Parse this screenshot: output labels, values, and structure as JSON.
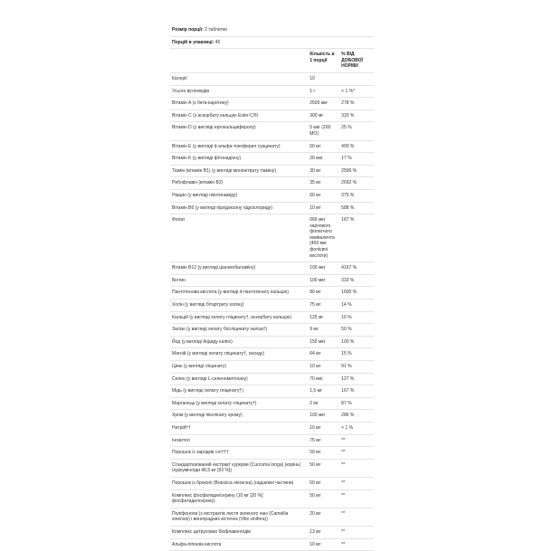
{
  "serving_size": {
    "label": "Розмір порції",
    "value": "2 таблетки"
  },
  "servings_per_container": {
    "label": "Порцій в упаковці",
    "value": "45"
  },
  "header": {
    "amount": "Кількість в 1 порції",
    "dv": "% ВІД ДОБОВОЇ НОРМИ"
  },
  "rows": [
    {
      "name": "Калорії",
      "amount": "10",
      "dv": ""
    },
    {
      "name": "Усього вуглеводів",
      "amount": "1 г",
      "dv": "< 1 %*"
    },
    {
      "name": "Вітамін A (з бета-каротину)",
      "amount": "2500 мкг",
      "dv": "278 %"
    },
    {
      "name": "Вітамін C (з аскорбату кальцію Ester-C®)",
      "amount": "300 мг",
      "dv": "333 %"
    },
    {
      "name": "Вітамін D (у вигляді ергокальциферолу)",
      "amount": "5 мкг (200 МО)",
      "dv": "25 %"
    },
    {
      "name": "Вітамін E (у вигляді d-альфа-токоферил сукцинату)",
      "amount": "60 мг",
      "dv": "400 %"
    },
    {
      "name": "Вітамін K (у вигляді фітонадіону)",
      "amount": "20 мкг",
      "dv": "17 %"
    },
    {
      "name": "Тіамін (вітамін B1) (у вигляді мононітрату тіаміну)",
      "amount": "30 мг",
      "dv": "2500 %"
    },
    {
      "name": "Рибофлавін (вітамін B2)",
      "amount": "35 мг",
      "dv": "2692 %"
    },
    {
      "name": "Ніацин (у вигляді нікотинаміду)",
      "amount": "60 мг",
      "dv": "375 %"
    },
    {
      "name": "Вітамін B6 (у вигляді піридоксину гідрохлориду)",
      "amount": "10 мг",
      "dv": "588 %"
    },
    {
      "name": "Фолат",
      "amount": "666 мкг харчового фолатного еквівалента (400 мкг фолієвої кислоти)",
      "dv": "167 %"
    },
    {
      "name": "Вітамін B12 (у вигляді ціанокобаламіну)",
      "amount": "100 мкг",
      "dv": "4167 %"
    },
    {
      "name": "Біотин",
      "amount": "100 мкг",
      "dv": "333 %"
    },
    {
      "name": "Пантотенова кислота (у вигляді d-пантотенату кальцію)",
      "amount": "80 мг",
      "dv": "1600 %"
    },
    {
      "name": "Холін (у вигляді бітартрату холіну)",
      "amount": "75 мг",
      "dv": "14 %"
    },
    {
      "name": "Кальцій (у вигляді хелату гліцинату†, аскорбату кальцію)",
      "amount": "125 мг",
      "dv": "10 %"
    },
    {
      "name": "Залізо (у вигляді хелату бісгліцинату заліза†)",
      "amount": "9 мг",
      "dv": "50 %"
    },
    {
      "name": "Йод (у вигляді йодиду калію)",
      "amount": "150 мкг",
      "dv": "100 %"
    },
    {
      "name": "Магній (у вигляді хелату гліцинату†, оксиду)",
      "amount": "64 мг",
      "dv": "15 %"
    },
    {
      "name": "Цинк (у вигляді гліцинату)",
      "amount": "10 мг",
      "dv": "91 %"
    },
    {
      "name": "Селен (у вигляді L-селенометіоніну)",
      "amount": "70 мкг",
      "dv": "127 %"
    },
    {
      "name": "Мідь (у вигляді хелату гліцинату†)",
      "amount": "1,5 мг",
      "dv": "167 %"
    },
    {
      "name": "Марганець (у вигляді хелату гліцинату†)",
      "amount": "2 мг",
      "dv": "87 %"
    },
    {
      "name": "Хром (у вигляді піколінату хрому)",
      "amount": "100 мкг",
      "dv": "286 %"
    },
    {
      "name": "Натрій††",
      "amount": "10 мг",
      "dv": "< 1 %"
    },
    {
      "name": "Інозитол",
      "amount": "75 мг",
      "dv": "**"
    },
    {
      "name": "Порошок із зародків сої†††",
      "amount": "50 мг",
      "dv": "**"
    },
    {
      "name": "Стандартизований екстракт куркуми (Curcuma longa) (корінь) (куркуміноїди 46,5 мг [93 %])",
      "amount": "50 мг",
      "dv": "**"
    },
    {
      "name": "Порошок із броколі (Brassica oleracea) (надземні частини)",
      "amount": "50 мг",
      "dv": "**"
    },
    {
      "name": "Комплекс фосфатидилсерину (10 мг [20 %] фосфатидилсерину)",
      "amount": "50 мг",
      "dv": "**"
    },
    {
      "name": "Поліфеноли (з екстрактів листя зеленого чаю (Camellia sinensis) і виноградних кісточок (Vitis vinifera))",
      "amount": "20 мг",
      "dv": "**"
    },
    {
      "name": "Комплекс цитрусових біофлавоноїдів",
      "amount": "13 мг",
      "dv": "**"
    },
    {
      "name": "Альфа-ліпоєва кислота",
      "amount": "10 мг",
      "dv": "**"
    }
  ]
}
